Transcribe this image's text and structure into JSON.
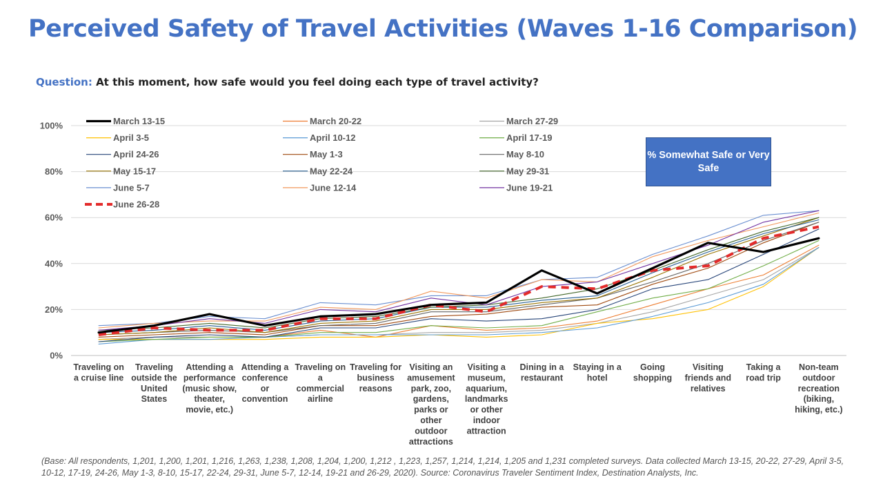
{
  "title": "Perceived Safety of Travel Activities (Waves 1-16 Comparison)",
  "question": {
    "label": "Question:",
    "text": "At this moment, how safe would you feel doing each type of travel activity?"
  },
  "callout": "% Somewhat Safe or Very Safe",
  "footnote": "(Base: All respondents, 1,201, 1,200, 1,201, 1,216, 1,263, 1,238, 1,208, 1,204, 1,200, 1,212 , 1,223, 1,257, 1,214, 1,214, 1,205 and 1,231 completed surveys. Data collected March 13-15, 20-22, 27-29, April 3-5, 10-12, 17-19, 24-26, May 1-3, 8-10, 15-17, 22-24,  29-31, June 5-7, 12-14, 19-21 and 26-29, 2020). Source: Coronavirus Traveler Sentiment Index, Destination Analysts, Inc.",
  "chart_data": {
    "type": "line",
    "ylim": [
      0,
      100
    ],
    "y_ticks": [
      "0%",
      "20%",
      "40%",
      "60%",
      "80%",
      "100%"
    ],
    "grid": true,
    "legend_position": "top",
    "categories": [
      "Traveling on a cruise line",
      "Traveling outside the United States",
      "Attending a performance (music show, theater, movie, etc.)",
      "Attending a conference or convention",
      "Traveling on a commercial airline",
      "Traveling for business reasons",
      "Visiting an amusement park, zoo, gardens, parks or other outdoor attractions",
      "Visiting a museum, aquarium, landmarks or other indoor attraction",
      "Dining in a restaurant",
      "Staying in a hotel",
      "Going shopping",
      "Visiting friends and relatives",
      "Taking a road trip",
      "Non-team outdoor recreation (biking, hiking, etc.)"
    ],
    "category_lines": [
      [
        "Traveling on",
        "a cruise line"
      ],
      [
        "Traveling",
        "outside the",
        "United",
        "States"
      ],
      [
        "Attending a",
        "performance",
        "(music show,",
        "theater,",
        "movie, etc.)"
      ],
      [
        "Attending a",
        "conference",
        "or",
        "convention"
      ],
      [
        "Traveling on",
        "a",
        "commercial",
        "airline"
      ],
      [
        "Traveling for",
        "business",
        "reasons"
      ],
      [
        "Visiting an",
        "amusement",
        "park, zoo,",
        "gardens,",
        "parks or",
        "other",
        "outdoor",
        "attractions"
      ],
      [
        "Visiting a",
        "museum,",
        "aquarium,",
        "landmarks",
        "or other",
        "indoor",
        "attraction"
      ],
      [
        "Dining in a",
        "restaurant"
      ],
      [
        "Staying in a",
        "hotel"
      ],
      [
        "Going",
        "shopping"
      ],
      [
        "Visiting",
        "friends and",
        "relatives"
      ],
      [
        "Taking a",
        "road trip"
      ],
      [
        "Non-team",
        "outdoor",
        "recreation",
        "(biking,",
        "hiking, etc.)"
      ]
    ],
    "series": [
      {
        "name": "March 13-15",
        "color": "#000000",
        "style": "bold",
        "values": [
          10,
          13,
          18,
          13,
          17,
          18,
          22,
          23,
          37,
          27,
          38,
          49,
          45,
          51
        ]
      },
      {
        "name": "March 20-22",
        "color": "#ed7d31",
        "style": "thin",
        "values": [
          7,
          8,
          8,
          8,
          11,
          8,
          13,
          11,
          12,
          15,
          22,
          29,
          35,
          48
        ]
      },
      {
        "name": "March 27-29",
        "color": "#a5a5a5",
        "style": "thin",
        "values": [
          7,
          8,
          8,
          8,
          9,
          9,
          10,
          10,
          11,
          14,
          19,
          26,
          33,
          47
        ]
      },
      {
        "name": "April 3-5",
        "color": "#ffc000",
        "style": "thin",
        "values": [
          7,
          7,
          7,
          7,
          8,
          8,
          9,
          8,
          9,
          14,
          16,
          20,
          30,
          47
        ]
      },
      {
        "name": "April 10-12",
        "color": "#5b9bd5",
        "style": "thin",
        "values": [
          5,
          7,
          7,
          8,
          9,
          9,
          9,
          9,
          10,
          12,
          17,
          23,
          31,
          47
        ]
      },
      {
        "name": "April 17-19",
        "color": "#70ad47",
        "style": "thin",
        "values": [
          6,
          7,
          8,
          8,
          10,
          10,
          13,
          12,
          13,
          19,
          25,
          29,
          39,
          50
        ]
      },
      {
        "name": "April 24-26",
        "color": "#264478",
        "style": "thin",
        "values": [
          6,
          8,
          9,
          8,
          12,
          12,
          16,
          15,
          16,
          20,
          29,
          33,
          44,
          55
        ]
      },
      {
        "name": "May 1-3",
        "color": "#9e480e",
        "style": "thin",
        "values": [
          8,
          9,
          10,
          9,
          13,
          13,
          17,
          18,
          21,
          22,
          31,
          38,
          49,
          58
        ]
      },
      {
        "name": "May 8-10",
        "color": "#636363",
        "style": "thin",
        "values": [
          9,
          10,
          11,
          10,
          13,
          14,
          19,
          19,
          22,
          25,
          32,
          40,
          50,
          58
        ]
      },
      {
        "name": "May 15-17",
        "color": "#997300",
        "style": "thin",
        "values": [
          9,
          10,
          12,
          10,
          14,
          15,
          20,
          20,
          23,
          25,
          34,
          44,
          52,
          60
        ]
      },
      {
        "name": "May 22-24",
        "color": "#255e91",
        "style": "thin",
        "values": [
          10,
          11,
          13,
          11,
          15,
          16,
          21,
          21,
          24,
          26,
          36,
          45,
          53,
          59
        ]
      },
      {
        "name": "May 29-31",
        "color": "#43682b",
        "style": "thin",
        "values": [
          11,
          12,
          14,
          12,
          16,
          17,
          21,
          22,
          25,
          29,
          37,
          46,
          54,
          60
        ]
      },
      {
        "name": "June 5-7",
        "color": "#698ed0",
        "style": "thin",
        "values": [
          13,
          14,
          17,
          16,
          23,
          22,
          26,
          26,
          33,
          34,
          44,
          52,
          61,
          63
        ]
      },
      {
        "name": "June 12-14",
        "color": "#f1975a",
        "style": "thin",
        "values": [
          12,
          14,
          15,
          15,
          21,
          20,
          28,
          25,
          33,
          32,
          43,
          50,
          56,
          62
        ]
      },
      {
        "name": "June 19-21",
        "color": "#7030a0",
        "style": "thin",
        "values": [
          11,
          13,
          16,
          14,
          20,
          19,
          25,
          22,
          30,
          32,
          40,
          48,
          58,
          63
        ]
      },
      {
        "name": "June 26-28",
        "color": "#e32b2b",
        "style": "dashed",
        "values": [
          9,
          12,
          11,
          11,
          16,
          16,
          22,
          19,
          30,
          29,
          37,
          39,
          51,
          56
        ]
      }
    ]
  }
}
